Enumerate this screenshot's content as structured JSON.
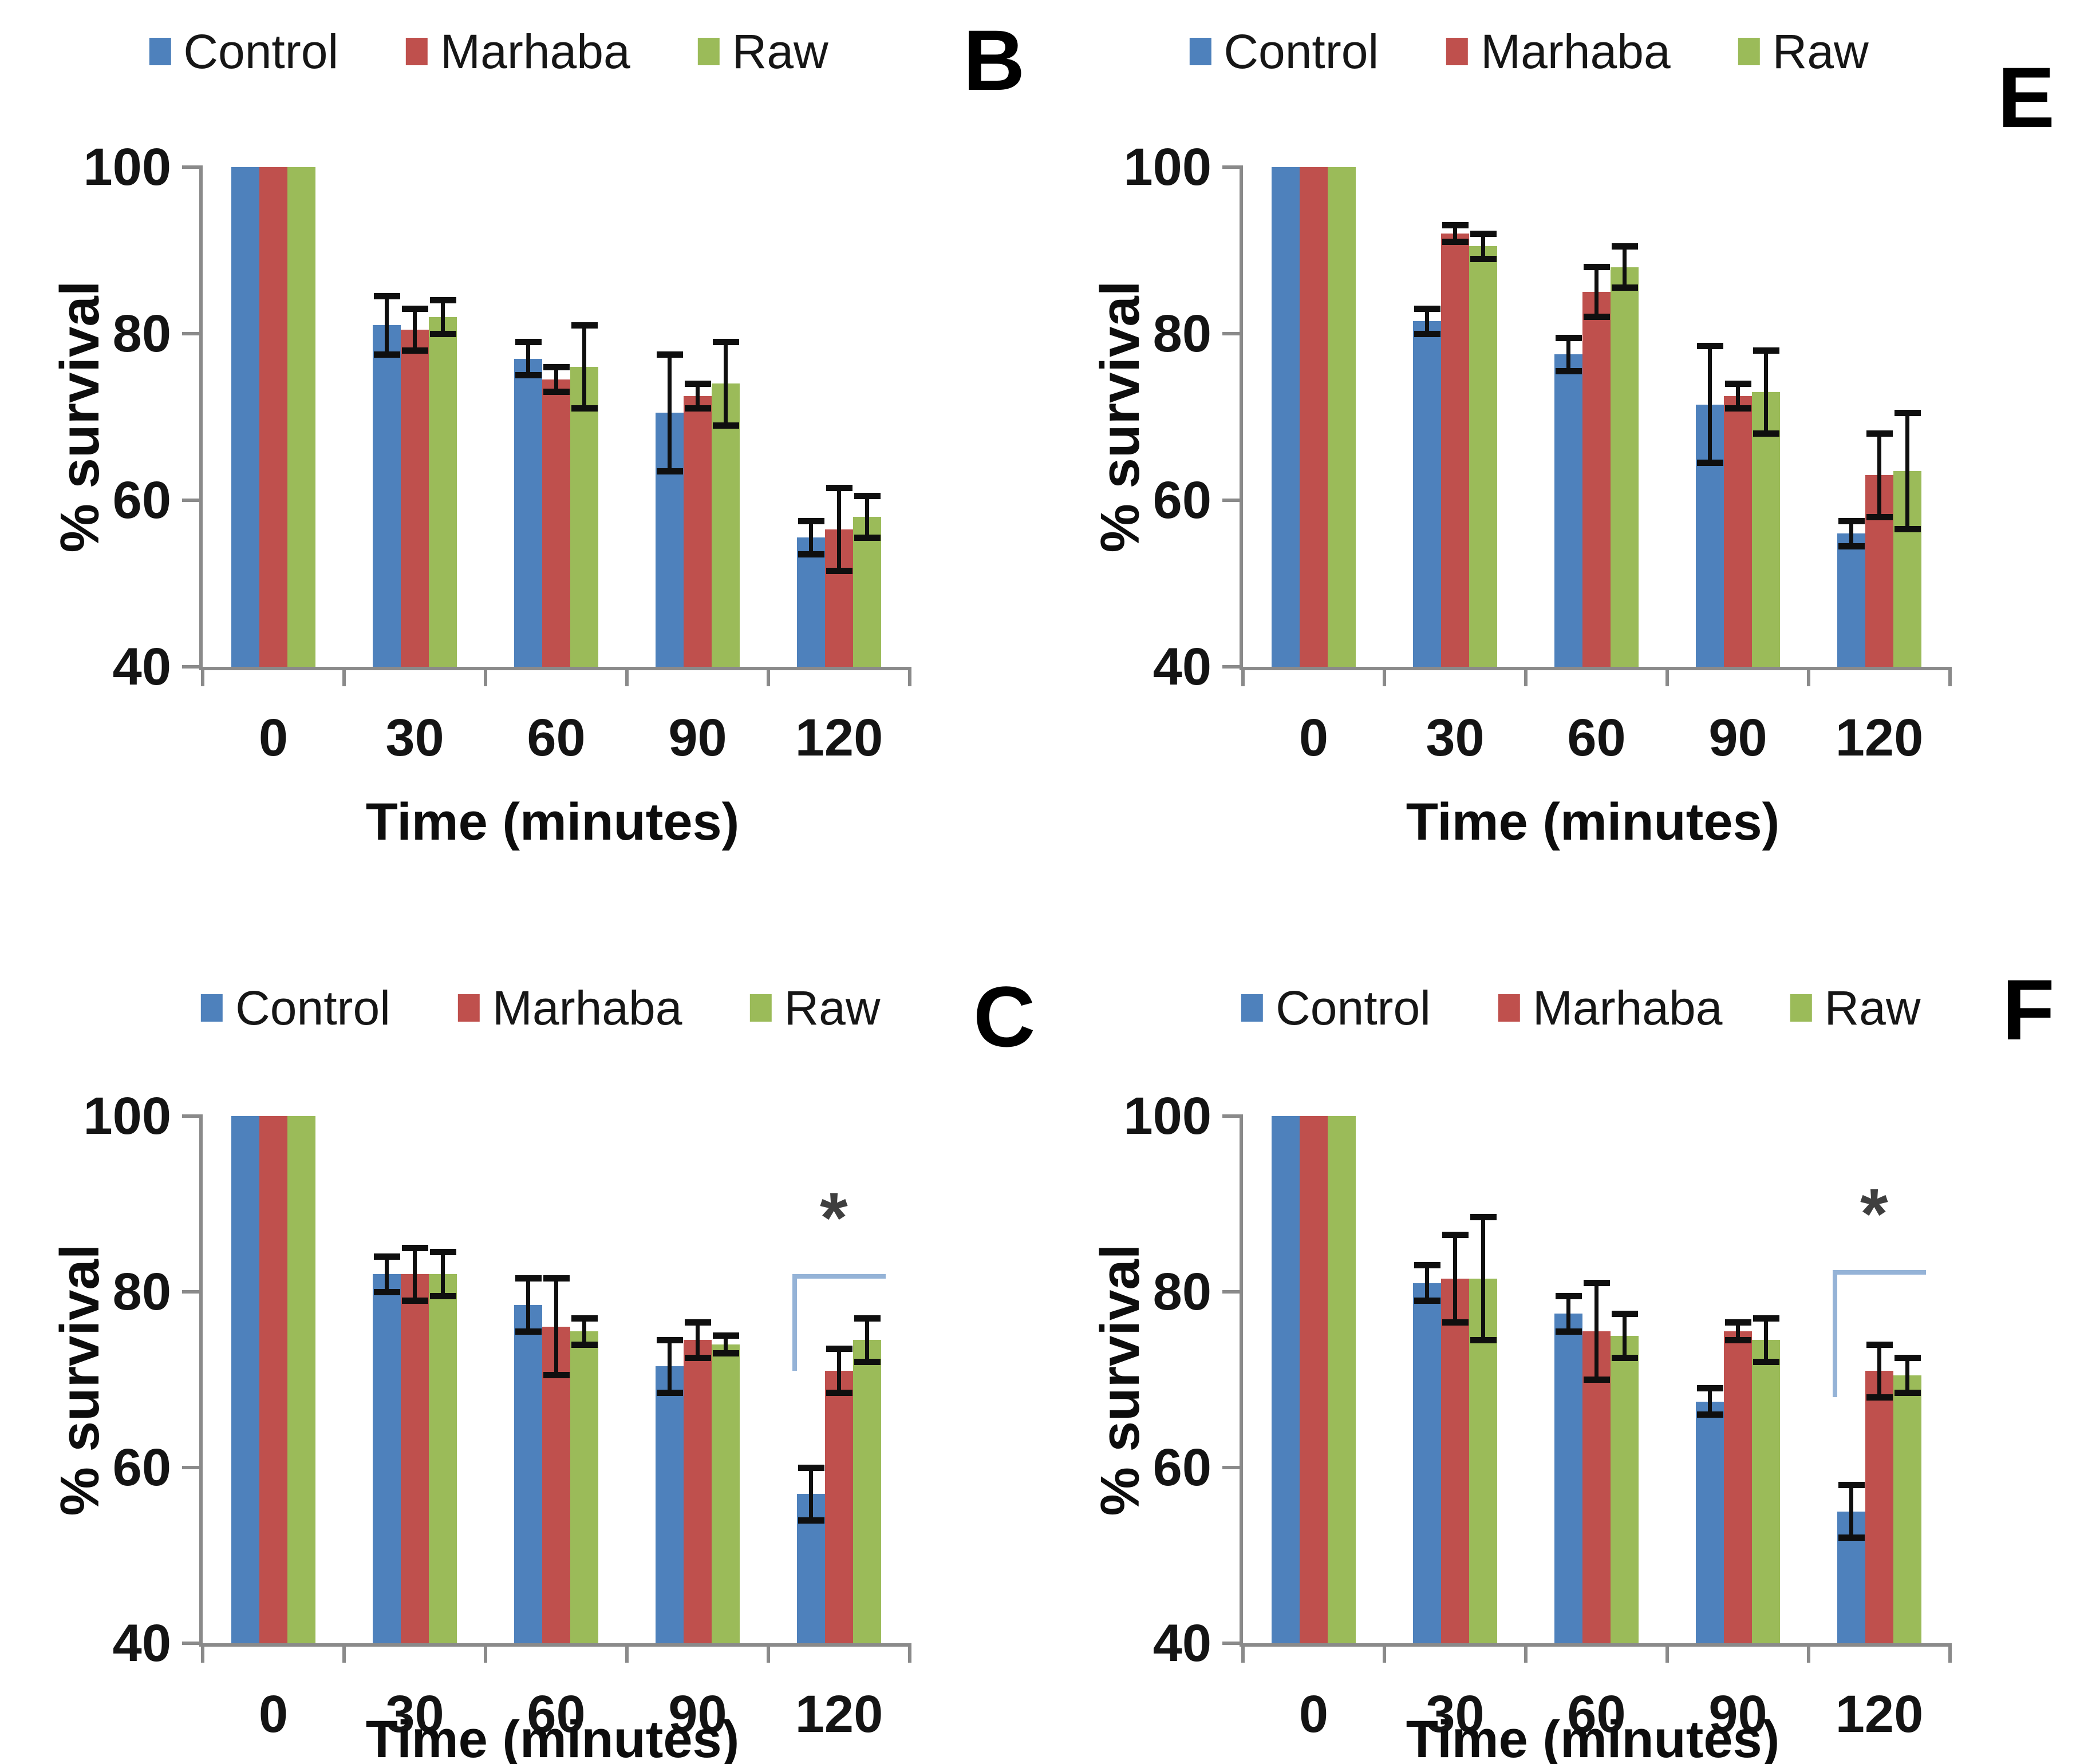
{
  "figure": {
    "ylabel": "% survival",
    "xlabel": "Time (minutes)",
    "panel_labels": [
      "B",
      "E",
      "C",
      "F"
    ],
    "legend_entries": [
      "Control",
      "Marhaba",
      "Raw"
    ]
  },
  "palette": {
    "control": "#4E81BC",
    "marhaba": "#BF504D",
    "raw": "#9BBB59",
    "axis": "#8A8A8A",
    "error_bar": "#0F0F0F",
    "bracket": "#95B3D7",
    "star": "#3F3F3F"
  },
  "chart_data": [
    {
      "id": "B",
      "type": "bar",
      "title": "",
      "categories": [
        "0",
        "30",
        "60",
        "90",
        "120"
      ],
      "xlabel": "Time (minutes)",
      "ylabel": "% survival",
      "ylim": [
        40,
        100
      ],
      "yticks": [
        100,
        80,
        60,
        40
      ],
      "grid": false,
      "legend_position": "top",
      "series": [
        {
          "name": "Control",
          "color": "#4E81BC",
          "values": [
            100,
            81,
            77,
            70.5,
            55.5
          ],
          "errors": [
            0,
            3.5,
            2,
            7,
            2
          ]
        },
        {
          "name": "Marhaba",
          "color": "#BF504D",
          "values": [
            100,
            80.5,
            74.5,
            72.5,
            56.5
          ],
          "errors": [
            0,
            2.5,
            1.5,
            1.5,
            5
          ]
        },
        {
          "name": "Raw",
          "color": "#9BBB59",
          "values": [
            100,
            82,
            76,
            74,
            58
          ],
          "errors": [
            0,
            2,
            5,
            5,
            2.5
          ]
        }
      ],
      "significance": null
    },
    {
      "id": "E",
      "type": "bar",
      "title": "",
      "categories": [
        "0",
        "30",
        "60",
        "90",
        "120"
      ],
      "xlabel": "Time (minutes)",
      "ylabel": "% survival",
      "ylim": [
        40,
        100
      ],
      "yticks": [
        100,
        80,
        60,
        40
      ],
      "grid": false,
      "legend_position": "top",
      "series": [
        {
          "name": "Control",
          "color": "#4E81BC",
          "values": [
            100,
            81.5,
            77.5,
            71.5,
            56
          ],
          "errors": [
            0,
            1.5,
            2,
            7,
            1.5
          ]
        },
        {
          "name": "Marhaba",
          "color": "#BF504D",
          "values": [
            100,
            92,
            85,
            72.5,
            63
          ],
          "errors": [
            0,
            1,
            3,
            1.5,
            5
          ]
        },
        {
          "name": "Raw",
          "color": "#9BBB59",
          "values": [
            100,
            90.5,
            88,
            73,
            63.5
          ],
          "errors": [
            0,
            1.5,
            2.5,
            5,
            7
          ]
        }
      ],
      "significance": null
    },
    {
      "id": "C",
      "type": "bar",
      "title": "",
      "categories": [
        "0",
        "30",
        "60",
        "90",
        "120"
      ],
      "xlabel": "Time (minutes)",
      "ylabel": "% survival",
      "ylim": [
        40,
        100
      ],
      "yticks": [
        100,
        80,
        60,
        40
      ],
      "grid": false,
      "legend_position": "top",
      "series": [
        {
          "name": "Control",
          "color": "#4E81BC",
          "values": [
            100,
            82,
            78.5,
            71.5,
            57
          ],
          "errors": [
            0,
            2,
            3,
            3,
            3
          ]
        },
        {
          "name": "Marhaba",
          "color": "#BF504D",
          "values": [
            100,
            82,
            76,
            74.5,
            71
          ],
          "errors": [
            0,
            3,
            5.5,
            2,
            2.5
          ]
        },
        {
          "name": "Raw",
          "color": "#9BBB59",
          "values": [
            100,
            82,
            75.5,
            74,
            74.5
          ],
          "errors": [
            0,
            2.5,
            1.5,
            1,
            2.5
          ]
        }
      ],
      "significance": {
        "symbol": "*",
        "category": "120",
        "compares": "Control vs Raw",
        "bracket_top_value": 82,
        "bracket_drop_value": 71
      }
    },
    {
      "id": "F",
      "type": "bar",
      "title": "",
      "categories": [
        "0",
        "30",
        "60",
        "90",
        "120"
      ],
      "xlabel": "Time (minutes)",
      "ylabel": "% survival",
      "ylim": [
        40,
        100
      ],
      "yticks": [
        100,
        80,
        60,
        40
      ],
      "grid": false,
      "legend_position": "top",
      "series": [
        {
          "name": "Control",
          "color": "#4E81BC",
          "values": [
            100,
            81,
            77.5,
            67.5,
            55
          ],
          "errors": [
            0,
            2,
            2,
            1.5,
            3
          ]
        },
        {
          "name": "Marhaba",
          "color": "#BF504D",
          "values": [
            100,
            81.5,
            75.5,
            75.5,
            71
          ],
          "errors": [
            0,
            5,
            5.5,
            1,
            3
          ]
        },
        {
          "name": "Raw",
          "color": "#9BBB59",
          "values": [
            100,
            81.5,
            75,
            74.5,
            70.5
          ],
          "errors": [
            0,
            7,
            2.5,
            2.5,
            2
          ]
        }
      ],
      "significance": {
        "symbol": "*",
        "category": "120",
        "compares": "Control vs Raw",
        "bracket_top_value": 82.5,
        "bracket_drop_value": 68
      }
    }
  ]
}
